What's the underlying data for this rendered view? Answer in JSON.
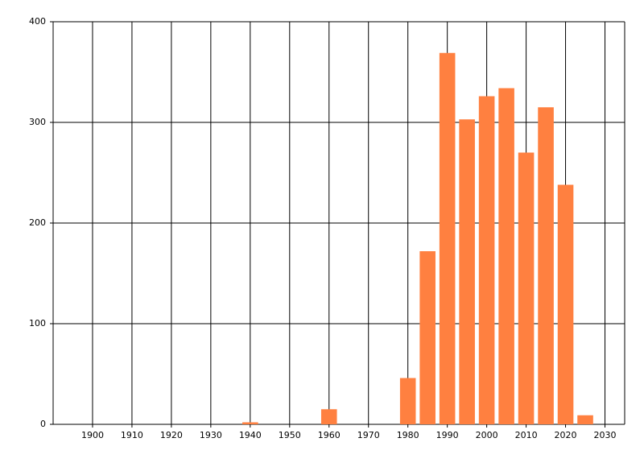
{
  "chart_data": {
    "type": "bar",
    "x": [
      1940,
      1960,
      1980,
      1985,
      1990,
      1995,
      2000,
      2005,
      2010,
      2015,
      2020,
      2025
    ],
    "values": [
      2,
      15,
      46,
      172,
      369,
      303,
      326,
      334,
      270,
      315,
      238,
      9
    ],
    "color": "#ff8040",
    "xlim": [
      1890,
      2035
    ],
    "xticks": [
      1900,
      1910,
      1920,
      1930,
      1940,
      1950,
      1960,
      1970,
      1980,
      1990,
      2000,
      2010,
      2020,
      2030
    ],
    "ylim": [
      0,
      400
    ],
    "yticks": [
      0,
      100,
      200,
      300,
      400
    ],
    "grid": true
  }
}
